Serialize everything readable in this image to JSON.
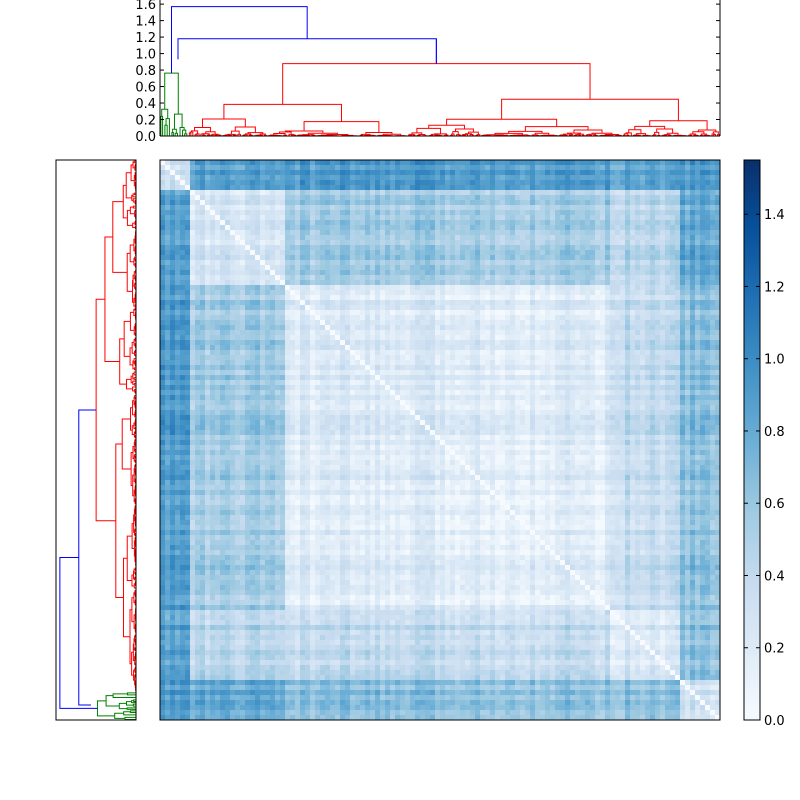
{
  "chart_data": [
    {
      "type": "dendrogram",
      "orientation": "top",
      "ylim": [
        0.0,
        1.65
      ],
      "yticks": [
        "0.0",
        "0.2",
        "0.4",
        "0.6",
        "0.8",
        "1.0",
        "1.2",
        "1.4",
        "1.6"
      ],
      "clusters": [
        {
          "color": "#008000",
          "leaf_range": [
            0.0,
            0.05
          ],
          "merge_height": 0.93
        },
        {
          "color": "#ff0000",
          "leaf_range": [
            0.05,
            1.0
          ],
          "merge_height": 0.95
        }
      ],
      "links": [
        {
          "color": "#0000ff",
          "height": 1.18
        },
        {
          "color": "#0000ff",
          "height": 1.57
        }
      ]
    },
    {
      "type": "dendrogram",
      "orientation": "left",
      "ticks_shown": false,
      "clusters": [
        {
          "color": "#008000",
          "leaf_range": [
            0.0,
            0.05
          ]
        },
        {
          "color": "#ff0000",
          "leaf_range": [
            0.05,
            1.0
          ]
        }
      ]
    },
    {
      "type": "heatmap",
      "description_role": "pairwise distance matrix ordered by dendrogram leaves",
      "colormap": "Blues",
      "value_range": [
        0.0,
        1.55
      ],
      "diagonal_value": 0.0,
      "block_boundaries_fraction": [
        0.05,
        0.22,
        0.8,
        0.92
      ],
      "colorbar": {
        "ticks": [
          "0.0",
          "0.2",
          "0.4",
          "0.6",
          "0.8",
          "1.0",
          "1.2",
          "1.4"
        ],
        "range": [
          0.0,
          1.55
        ]
      }
    }
  ],
  "colors": {
    "cluster_red": "#ff0000",
    "cluster_green": "#008000",
    "link_blue": "#0000ff",
    "axis": "#000000",
    "cmap_low": "#f7fbff",
    "cmap_high": "#08306b"
  }
}
